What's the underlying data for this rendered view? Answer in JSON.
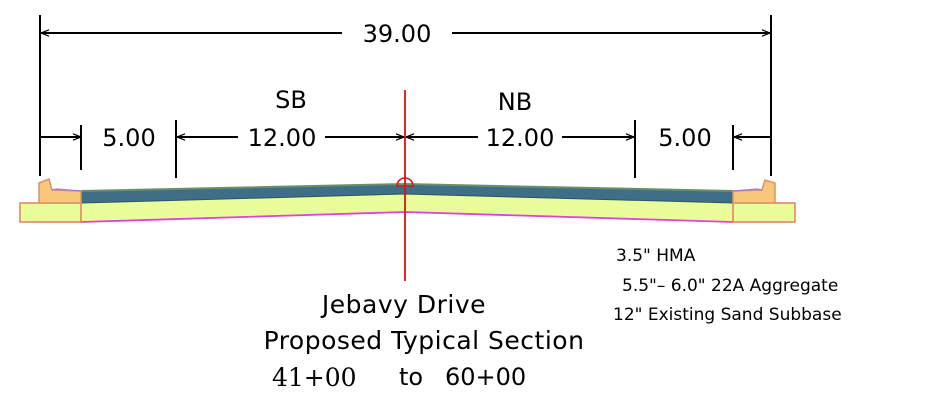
{
  "dimensions": {
    "total_width": "39.00",
    "left_shoulder": "5.00",
    "left_lane": "12.00",
    "right_lane": "12.00",
    "right_shoulder": "5.00"
  },
  "direction_labels": {
    "southbound": "SB",
    "northbound": "NB"
  },
  "legend": {
    "line1": "3.5\" HMA",
    "line2": "5.5\"– 6.0\" 22A Aggregate",
    "line3": "12\" Existing Sand Subbase"
  },
  "title": {
    "road_name": "Jebavy Drive",
    "section_name": "Proposed Typical Section",
    "station_start": "41+00",
    "station_to": "to",
    "station_end": "60+00"
  },
  "colors": {
    "hma": "#3e6f86",
    "hma_top": "#5a8a7a",
    "aggregate": "#e9fd9b",
    "subbase_outline": "#e040e0",
    "curb": "#f9c77a",
    "curb_outline": "#d4956a",
    "centerline": "#e01010"
  }
}
